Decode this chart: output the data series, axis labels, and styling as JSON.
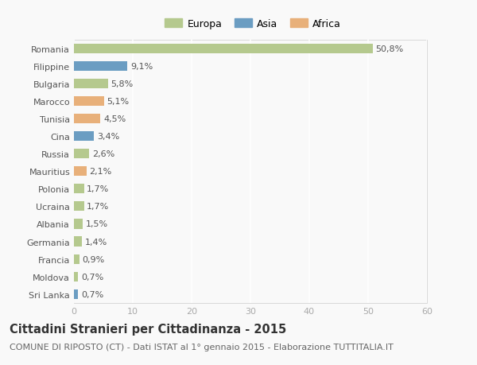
{
  "categories": [
    "Romania",
    "Filippine",
    "Bulgaria",
    "Marocco",
    "Tunisia",
    "Cina",
    "Russia",
    "Mauritius",
    "Polonia",
    "Ucraina",
    "Albania",
    "Germania",
    "Francia",
    "Moldova",
    "Sri Lanka"
  ],
  "values": [
    50.8,
    9.1,
    5.8,
    5.1,
    4.5,
    3.4,
    2.6,
    2.1,
    1.7,
    1.7,
    1.5,
    1.4,
    0.9,
    0.7,
    0.7
  ],
  "labels": [
    "50,8%",
    "9,1%",
    "5,8%",
    "5,1%",
    "4,5%",
    "3,4%",
    "2,6%",
    "2,1%",
    "1,7%",
    "1,7%",
    "1,5%",
    "1,4%",
    "0,9%",
    "0,7%",
    "0,7%"
  ],
  "colors": [
    "#b5c98e",
    "#6b9dc2",
    "#b5c98e",
    "#e8b07a",
    "#e8b07a",
    "#6b9dc2",
    "#b5c98e",
    "#e8b07a",
    "#b5c98e",
    "#b5c98e",
    "#b5c98e",
    "#b5c98e",
    "#b5c98e",
    "#b5c98e",
    "#6b9dc2"
  ],
  "legend_labels": [
    "Europa",
    "Asia",
    "Africa"
  ],
  "legend_colors": [
    "#b5c98e",
    "#6b9dc2",
    "#e8b07a"
  ],
  "xlim": [
    0,
    60
  ],
  "xticks": [
    0,
    10,
    20,
    30,
    40,
    50,
    60
  ],
  "title": "Cittadini Stranieri per Cittadinanza - 2015",
  "subtitle": "COMUNE DI RIPOSTO (CT) - Dati ISTAT al 1° gennaio 2015 - Elaborazione TUTTITALIA.IT",
  "background_color": "#f9f9f9",
  "grid_color": "#ffffff",
  "bar_height": 0.55,
  "title_fontsize": 10.5,
  "subtitle_fontsize": 8,
  "label_fontsize": 8,
  "tick_fontsize": 8,
  "legend_fontsize": 9
}
